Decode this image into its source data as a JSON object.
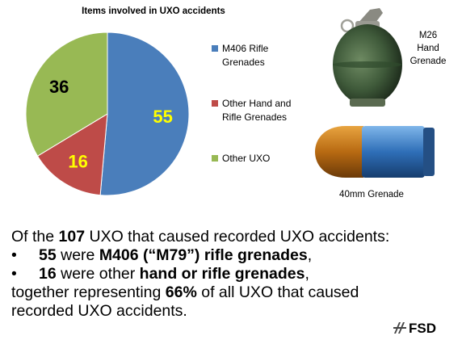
{
  "chart_data": {
    "type": "pie",
    "title": "Items involved in UXO accidents",
    "slices": [
      {
        "label": "M406 Rifle Grenades",
        "value": 55,
        "color": "#4a7ebb"
      },
      {
        "label": "Other Hand and Rifle Grenades",
        "value": 16,
        "color": "#be4b48"
      },
      {
        "label": "Other UXO",
        "value": 36,
        "color": "#98b954"
      }
    ],
    "data_labels": [
      "55",
      "16",
      "36"
    ],
    "data_label_colors": [
      "#ffff00",
      "#ffff00",
      "#000000"
    ],
    "legend_position": "right"
  },
  "legend": [
    {
      "label": "M406 Rifle\nGrenades",
      "color": "#4a7ebb"
    },
    {
      "label": "Other Hand and\nRifle Grenades",
      "color": "#be4b48"
    },
    {
      "label": "Other UXO",
      "color": "#98b954"
    }
  ],
  "photos": {
    "grenade_label": "M26\nHand\nGrenade",
    "round_label": "40mm Grenade"
  },
  "text": {
    "line1": {
      "pre": "Of the ",
      "bold": "107",
      "post": " UXO that caused recorded UXO accidents:"
    },
    "line2": {
      "bullet": "•",
      "num": "55",
      "mid": " were ",
      "bold": "M406 (“M79”) rifle grenades",
      "post": ","
    },
    "line3": {
      "bullet": "•",
      "num": "16",
      "mid": " were other ",
      "bold": "hand or rifle grenades",
      "post": ","
    },
    "line4": {
      "pre": "together representing ",
      "bold": "66%",
      "post": " of all UXO that caused"
    },
    "line5": "recorded UXO accidents."
  },
  "brand": "FSD"
}
